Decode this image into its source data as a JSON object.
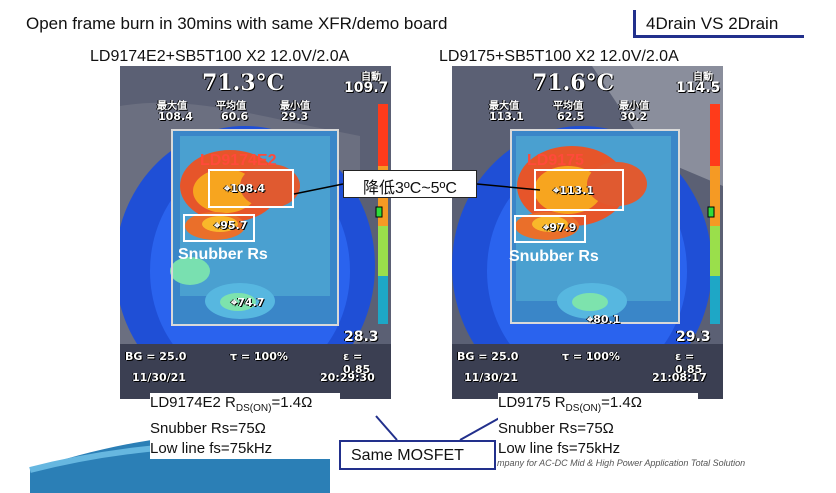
{
  "header": {
    "title": "Open frame burn in 30mins with same XFR/demo board",
    "tag": "4Drain VS 2Drain"
  },
  "left": {
    "subtitle": "LD9174E2+SB5T100 X2 12.0V/2.0A",
    "main_temp": "71.3°C",
    "mode": "自動",
    "max_scale": "109.7",
    "min_scale": "28.3",
    "stat_labels": [
      "最大值",
      "平均值",
      "最小值"
    ],
    "stat_values": [
      "108.4",
      "60.6",
      "29.3"
    ],
    "chip_label": "LD9174E2",
    "hot_point": "108.4",
    "snubber_point": "95.7",
    "snubber_label": "Snubber Rs",
    "other_point": "74.7",
    "bg": "BG = 25.0",
    "tau": "τ = 100%",
    "eps": "ε = 0.85",
    "date": "11/30/21",
    "time": "20:29:30",
    "notes": {
      "rds_prefix": "LD9174E2 R",
      "rds_sub": "DS(ON)",
      "rds_suffix": "=1.4Ω",
      "snubber": "Snubber Rs=75Ω",
      "fs": "Low line fs=75kHz"
    }
  },
  "right": {
    "subtitle": "LD9175+SB5T100 X2 12.0V/2.0A",
    "main_temp": "71.6°C",
    "mode": "自動",
    "max_scale": "114.5",
    "min_scale": "29.3",
    "stat_labels": [
      "最大值",
      "平均值",
      "最小值"
    ],
    "stat_values": [
      "113.1",
      "62.5",
      "30.2"
    ],
    "chip_label": "LD9175",
    "hot_point": "113.1",
    "snubber_point": "97.9",
    "snubber_label": "Snubber Rs",
    "other_point": "80.1",
    "bg": "BG = 25.0",
    "tau": "τ = 100%",
    "eps": "ε = 0.85",
    "date": "11/30/21",
    "time": "21:08:17",
    "notes": {
      "rds_prefix": "LD9175 R",
      "rds_sub": "DS(ON)",
      "rds_suffix": "=1.4Ω",
      "snubber": "Snubber Rs=75Ω",
      "fs": "Low line fs=75kHz"
    }
  },
  "callout": "降低3ºC~5ºC",
  "mosfet": "Same MOSFET",
  "footer": "mpany for AC-DC Mid & High Power Application Total Solution"
}
